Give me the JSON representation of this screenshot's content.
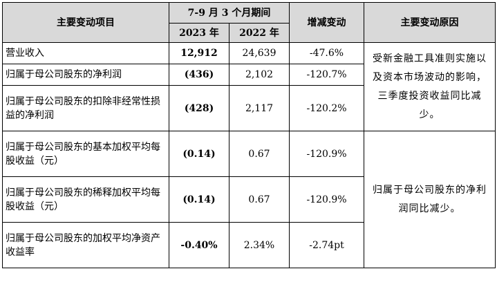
{
  "header": {
    "col_item": "主要变动项目",
    "col_period": "7-9 月 3 个月期间",
    "col_2023": "2023 年",
    "col_2022": "2022 年",
    "col_change": "增减变动",
    "col_reason": "主要变动原因"
  },
  "rows": [
    {
      "item": "营业收入",
      "y2023": "12,912",
      "y2022": "24,639",
      "change": "-47.6%"
    },
    {
      "item": "归属于母公司股东的净利润",
      "y2023": "(436)",
      "y2022": "2,102",
      "change": "-120.7%"
    },
    {
      "item": "归属于母公司股东的扣除非经常性损益的净利润",
      "y2023": "(428)",
      "y2022": "2,117",
      "change": "-120.2%"
    },
    {
      "item": "归属于母公司股东的基本加权平均每股收益（元）",
      "y2023": "(0.14)",
      "y2022": "0.67",
      "change": "-120.9%"
    },
    {
      "item": "归属于母公司股东的稀释加权平均每股收益（元）",
      "y2023": "(0.14)",
      "y2022": "0.67",
      "change": "-120.9%"
    },
    {
      "item": "归属于母公司股东的加权平均净资产收益率",
      "y2023": "-0.40%",
      "y2022": "2.34%",
      "change": "-2.74pt"
    }
  ],
  "reasons": {
    "group1": "受新金融工具准则实施以及资本市场波动的影响，三季度投资收益同比减少。",
    "group2": "归属于母公司股东的净利润同比减少。"
  }
}
